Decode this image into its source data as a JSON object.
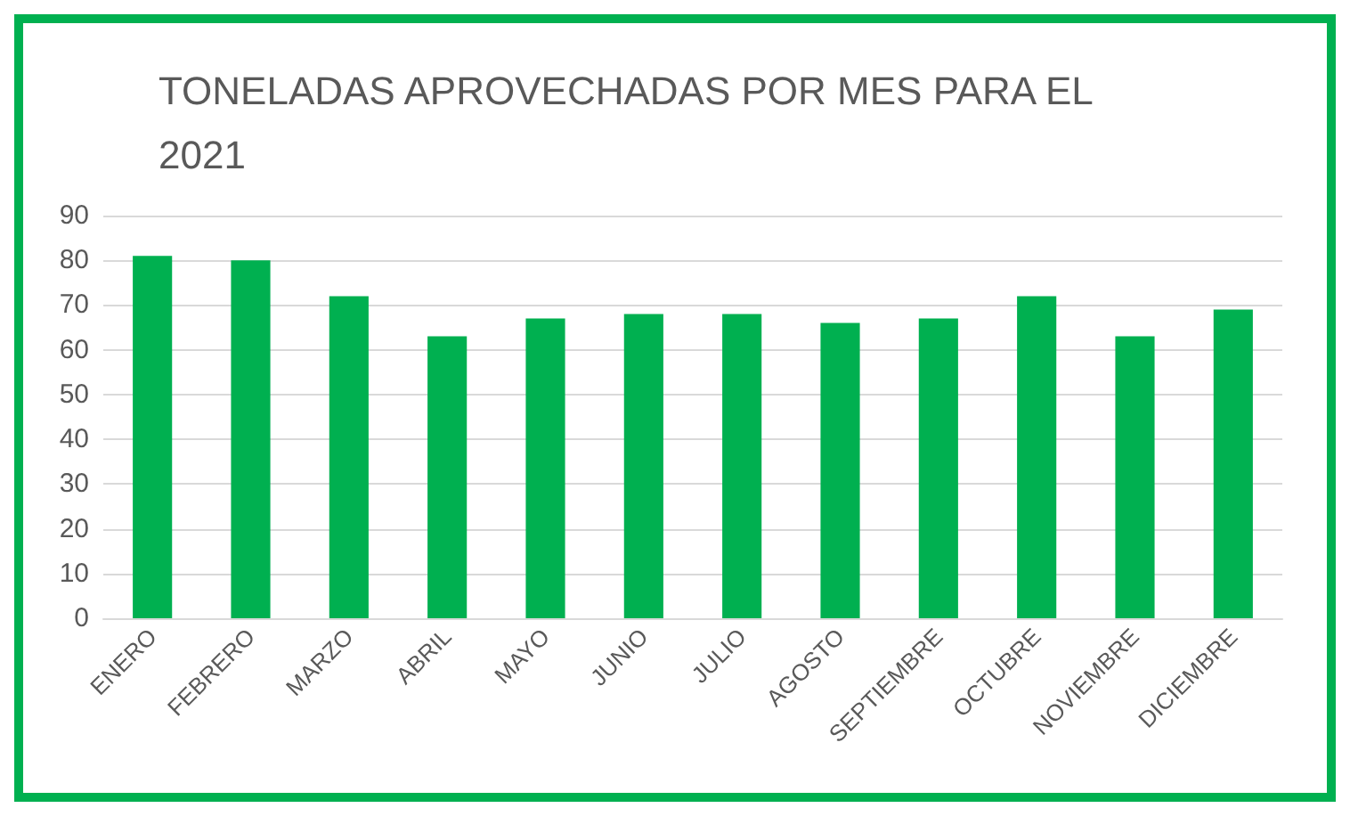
{
  "chart_data": {
    "type": "bar",
    "title": "TONELADAS APROVECHADAS POR MES PARA EL 2021",
    "categories": [
      "ENERO",
      "FEBRERO",
      "MARZO",
      "ABRIL",
      "MAYO",
      "JUNIO",
      "JULIO",
      "AGOSTO",
      "SEPTIEMBRE",
      "OCTUBRE",
      "NOVIEMBRE",
      "DICIEMBRE"
    ],
    "values": [
      81,
      80,
      72,
      63,
      67,
      68,
      68,
      66,
      67,
      72,
      63,
      69
    ],
    "color": "#00b050",
    "ylim": [
      0,
      90
    ],
    "yticks": [
      0,
      10,
      20,
      30,
      40,
      50,
      60,
      70,
      80,
      90
    ],
    "grid": "y"
  }
}
